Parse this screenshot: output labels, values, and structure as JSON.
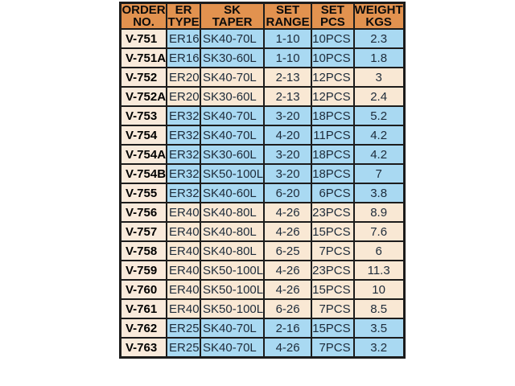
{
  "colors": {
    "page_bg": "#ffffff",
    "header_bg": "#e2924f",
    "header_text": "#0b0b0b",
    "order_col_bg": "#f9eadb",
    "order_text": "#000000",
    "row_blue": "#a9d9f2",
    "row_cream": "#f9e8d4",
    "data_text": "#1d2b3a",
    "border": "#1c1c1c"
  },
  "table": {
    "columns": [
      {
        "id": "order",
        "line1": "ORDER",
        "line2": "NO."
      },
      {
        "id": "er",
        "line1": "ER",
        "line2": "TYPE"
      },
      {
        "id": "taper",
        "line1": "SK",
        "line2": "TAPER"
      },
      {
        "id": "range",
        "line1": "SET",
        "line2": "RANGE"
      },
      {
        "id": "pcs",
        "line1": "SET",
        "line2": "PCS"
      },
      {
        "id": "weight",
        "line1": "WEIGHT",
        "line2": "KGS"
      }
    ],
    "rows": [
      {
        "order": "V-751",
        "er": "ER16",
        "taper": "SK40-70L",
        "range": "1-10",
        "pcs": "10PCS",
        "weight": "2.3",
        "tint": "blue"
      },
      {
        "order": "V-751A",
        "er": "ER16",
        "taper": "SK30-60L",
        "range": "1-10",
        "pcs": "10PCS",
        "weight": "1.8",
        "tint": "blue"
      },
      {
        "order": "V-752",
        "er": "ER20",
        "taper": "SK40-70L",
        "range": "2-13",
        "pcs": "12PCS",
        "weight": "3",
        "tint": "cream"
      },
      {
        "order": "V-752A",
        "er": "ER20",
        "taper": "SK30-60L",
        "range": "2-13",
        "pcs": "12PCS",
        "weight": "2.4",
        "tint": "cream"
      },
      {
        "order": "V-753",
        "er": "ER32",
        "taper": "SK40-70L",
        "range": "3-20",
        "pcs": "18PCS",
        "weight": "5.2",
        "tint": "blue"
      },
      {
        "order": "V-754",
        "er": "ER32",
        "taper": "SK40-70L",
        "range": "4-20",
        "pcs": "11PCS",
        "weight": "4.2",
        "tint": "blue"
      },
      {
        "order": "V-754A",
        "er": "ER32",
        "taper": "SK30-60L",
        "range": "3-20",
        "pcs": "18PCS",
        "weight": "4.2",
        "tint": "blue"
      },
      {
        "order": "V-754B",
        "er": "ER32",
        "taper": "SK50-100L",
        "range": "3-20",
        "pcs": "18PCS",
        "weight": "7",
        "tint": "blue"
      },
      {
        "order": "V-755",
        "er": "ER32",
        "taper": "SK40-60L",
        "range": "6-20",
        "pcs": "6PCS",
        "weight": "3.8",
        "tint": "blue"
      },
      {
        "order": "V-756",
        "er": "ER40",
        "taper": "SK40-80L",
        "range": "4-26",
        "pcs": "23PCS",
        "weight": "8.9",
        "tint": "cream"
      },
      {
        "order": "V-757",
        "er": "ER40",
        "taper": "SK40-80L",
        "range": "4-26",
        "pcs": "15PCS",
        "weight": "7.6",
        "tint": "cream"
      },
      {
        "order": "V-758",
        "er": "ER40",
        "taper": "SK40-80L",
        "range": "6-25",
        "pcs": "7PCS",
        "weight": "6",
        "tint": "cream"
      },
      {
        "order": "V-759",
        "er": "ER40",
        "taper": "SK50-100L",
        "range": "4-26",
        "pcs": "23PCS",
        "weight": "11.3",
        "tint": "cream"
      },
      {
        "order": "V-760",
        "er": "ER40",
        "taper": "SK50-100L",
        "range": "4-26",
        "pcs": "15PCS",
        "weight": "10",
        "tint": "cream"
      },
      {
        "order": "V-761",
        "er": "ER40",
        "taper": "SK50-100L",
        "range": "6-26",
        "pcs": "7PCS",
        "weight": "8.5",
        "tint": "cream"
      },
      {
        "order": "V-762",
        "er": "ER25",
        "taper": "SK40-70L",
        "range": "2-16",
        "pcs": "15PCS",
        "weight": "3.5",
        "tint": "blue"
      },
      {
        "order": "V-763",
        "er": "ER25",
        "taper": "SK40-70L",
        "range": "4-26",
        "pcs": "7PCS",
        "weight": "3.2",
        "tint": "blue"
      }
    ]
  }
}
